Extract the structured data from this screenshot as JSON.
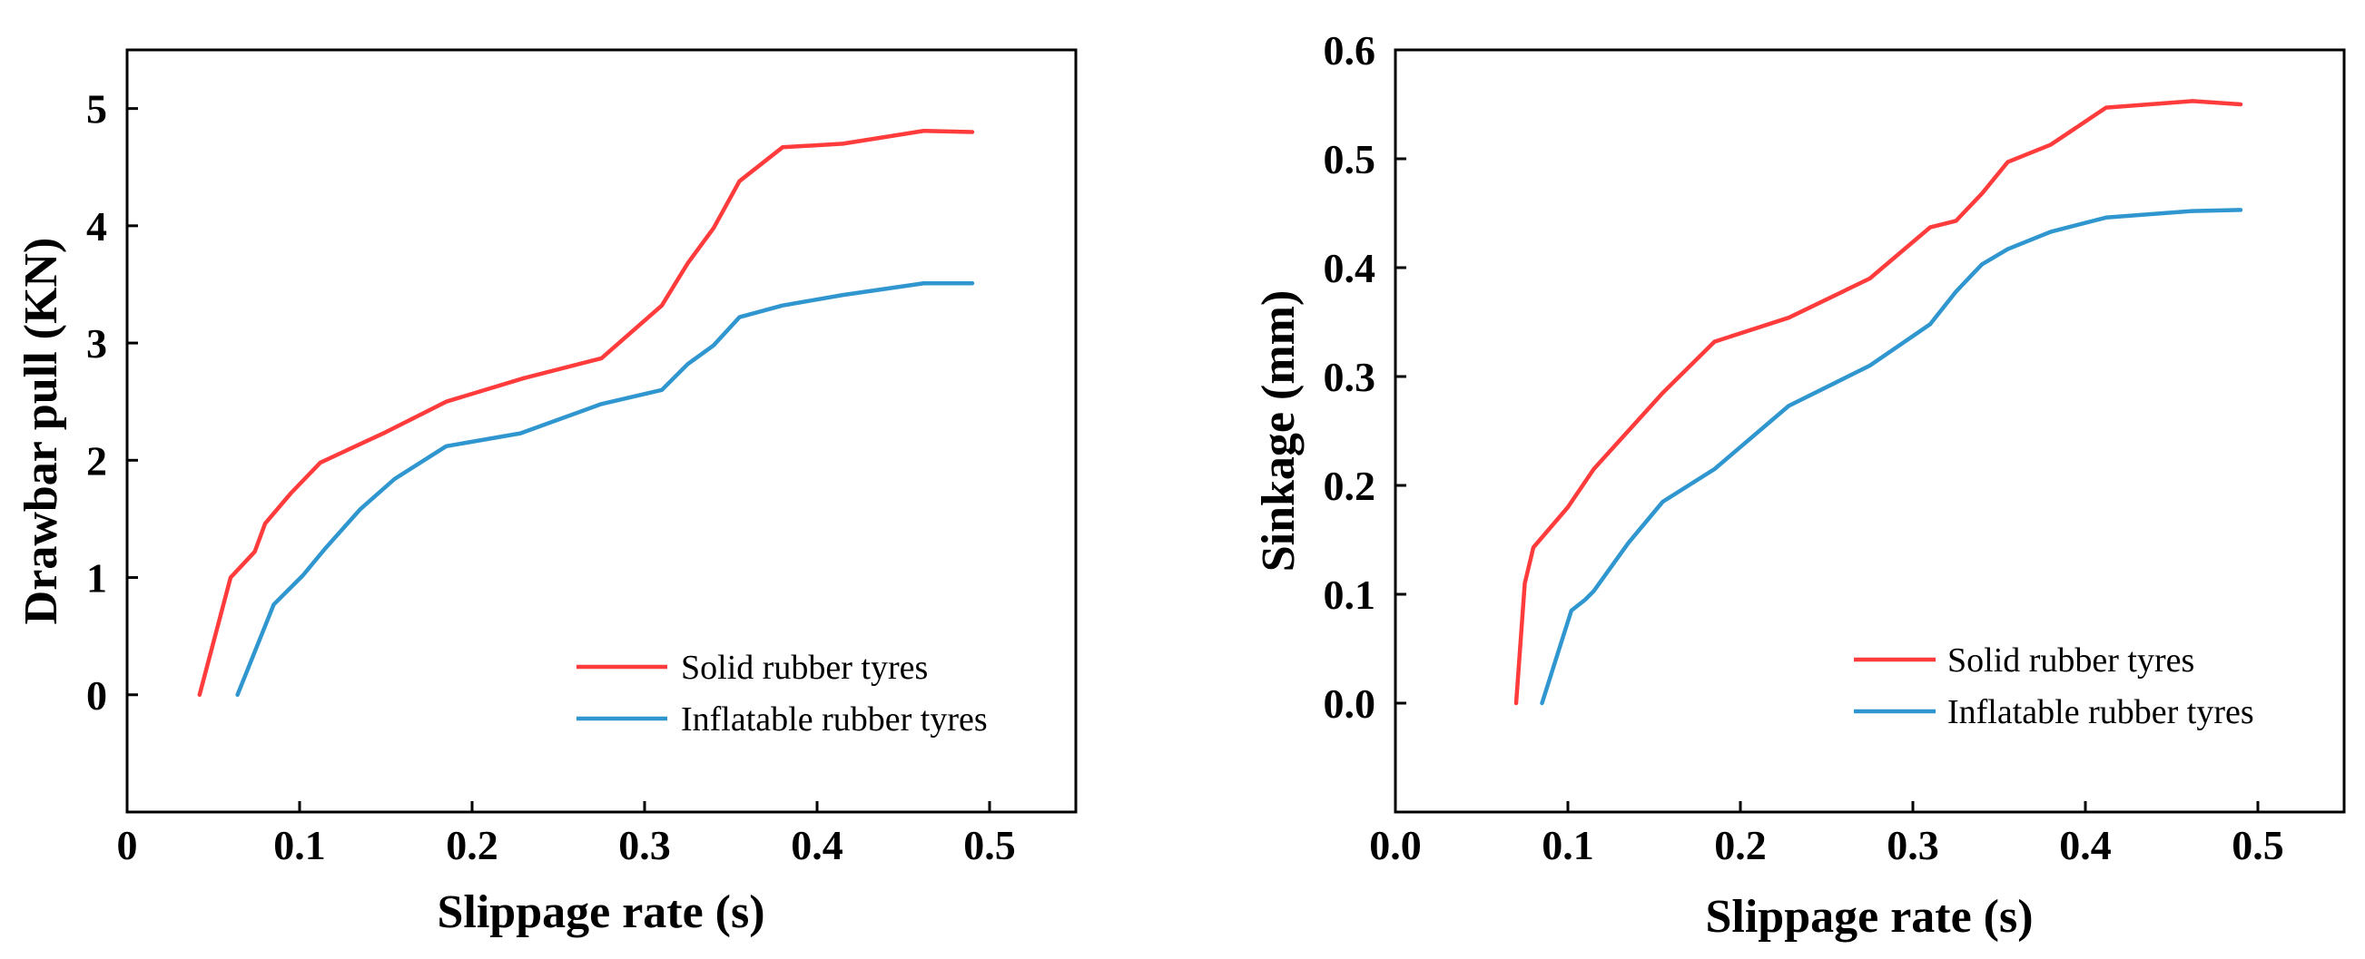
{
  "colors": {
    "solid": "#ff3b3b",
    "inflatable": "#2f96cf",
    "axis": "#000000"
  },
  "chart_data": [
    {
      "type": "line",
      "xlabel": "Slippage rate (s)",
      "ylabel": "Drawbar pull (KN)",
      "xlim": [
        0,
        0.55
      ],
      "ylim": [
        -1,
        5.5
      ],
      "xticks": [
        0,
        0.1,
        0.2,
        0.3,
        0.4,
        0.5
      ],
      "xtick_labels": [
        "0",
        "0.1",
        "0.2",
        "0.3",
        "0.4",
        "0.5"
      ],
      "yticks": [
        0,
        1,
        2,
        3,
        4,
        5
      ],
      "ytick_labels": [
        "0",
        "1",
        "2",
        "3",
        "4",
        "5"
      ],
      "legend_position": "bottom-right",
      "series": [
        {
          "name": "Solid rubber tyres",
          "color_key": "solid",
          "x": [
            0.042,
            0.06,
            0.074,
            0.08,
            0.095,
            0.112,
            0.15,
            0.185,
            0.23,
            0.275,
            0.31,
            0.325,
            0.34,
            0.355,
            0.38,
            0.415,
            0.462,
            0.49
          ],
          "y": [
            0,
            1.0,
            1.22,
            1.46,
            1.72,
            1.98,
            2.24,
            2.5,
            2.7,
            2.87,
            3.32,
            3.68,
            3.98,
            4.38,
            4.67,
            4.7,
            4.81,
            4.8
          ]
        },
        {
          "name": "Inflatable rubber tyres",
          "color_key": "inflatable",
          "x": [
            0.064,
            0.085,
            0.102,
            0.115,
            0.135,
            0.155,
            0.185,
            0.228,
            0.275,
            0.31,
            0.325,
            0.34,
            0.355,
            0.38,
            0.415,
            0.462,
            0.49
          ],
          "y": [
            0,
            0.77,
            1.02,
            1.25,
            1.58,
            1.84,
            2.12,
            2.23,
            2.48,
            2.6,
            2.82,
            2.98,
            3.22,
            3.32,
            3.41,
            3.51,
            3.51
          ]
        }
      ]
    },
    {
      "type": "line",
      "xlabel": "Slippage rate (s)",
      "ylabel": "Sinkage (mm)",
      "xlim": [
        0,
        0.55
      ],
      "ylim": [
        -0.1,
        0.6
      ],
      "xticks": [
        0,
        0.1,
        0.2,
        0.3,
        0.4,
        0.5
      ],
      "xtick_labels": [
        "0.0",
        "0.1",
        "0.2",
        "0.3",
        "0.4",
        "0.5"
      ],
      "yticks": [
        0,
        0.1,
        0.2,
        0.3,
        0.4,
        0.5,
        0.6
      ],
      "ytick_labels": [
        "0.0",
        "0.1",
        "0.2",
        "0.3",
        "0.4",
        "0.5",
        "0.6"
      ],
      "legend_position": "bottom-right",
      "series": [
        {
          "name": "Solid rubber tyres",
          "color_key": "solid",
          "x": [
            0.07,
            0.075,
            0.08,
            0.1,
            0.115,
            0.155,
            0.185,
            0.228,
            0.275,
            0.31,
            0.325,
            0.34,
            0.355,
            0.38,
            0.412,
            0.462,
            0.49
          ],
          "y": [
            0,
            0.11,
            0.143,
            0.18,
            0.215,
            0.285,
            0.332,
            0.354,
            0.39,
            0.437,
            0.443,
            0.468,
            0.497,
            0.513,
            0.547,
            0.553,
            0.55
          ]
        },
        {
          "name": "Inflatable rubber tyres",
          "color_key": "inflatable",
          "x": [
            0.085,
            0.102,
            0.11,
            0.115,
            0.135,
            0.155,
            0.185,
            0.228,
            0.275,
            0.31,
            0.325,
            0.34,
            0.355,
            0.38,
            0.412,
            0.462,
            0.49
          ],
          "y": [
            0,
            0.085,
            0.095,
            0.103,
            0.147,
            0.185,
            0.215,
            0.273,
            0.31,
            0.348,
            0.378,
            0.403,
            0.417,
            0.433,
            0.446,
            0.452,
            0.453
          ]
        }
      ]
    }
  ]
}
